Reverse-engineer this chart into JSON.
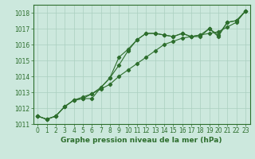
{
  "x": [
    0,
    1,
    2,
    3,
    4,
    5,
    6,
    7,
    8,
    9,
    10,
    11,
    12,
    13,
    14,
    15,
    16,
    17,
    18,
    19,
    20,
    21,
    22,
    23
  ],
  "line1": [
    1011.5,
    1011.3,
    1011.5,
    1012.1,
    1012.5,
    1012.6,
    1012.6,
    1013.3,
    1013.9,
    1015.2,
    1015.7,
    1016.3,
    1016.7,
    1016.7,
    1016.6,
    1016.5,
    1016.7,
    1016.5,
    1016.5,
    1017.0,
    1016.5,
    1017.4,
    1017.5,
    1018.1
  ],
  "line2": [
    1011.5,
    1011.3,
    1011.5,
    1012.1,
    1012.5,
    1012.6,
    1012.9,
    1013.3,
    1013.9,
    1014.7,
    1015.6,
    1016.3,
    1016.7,
    1016.7,
    1016.6,
    1016.5,
    1016.7,
    1016.5,
    1016.6,
    1017.0,
    1016.6,
    1017.4,
    1017.5,
    1018.1
  ],
  "line3": [
    1011.5,
    1011.3,
    1011.5,
    1012.1,
    1012.5,
    1012.7,
    1012.9,
    1013.2,
    1013.5,
    1014.0,
    1014.4,
    1014.8,
    1015.2,
    1015.6,
    1016.0,
    1016.2,
    1016.4,
    1016.5,
    1016.6,
    1016.7,
    1016.8,
    1017.1,
    1017.4,
    1018.1
  ],
  "line_color": "#2d6e2d",
  "bg_color": "#cce8dd",
  "grid_color": "#aacfbf",
  "xlabel": "Graphe pression niveau de la mer (hPa)",
  "ylim": [
    1011,
    1018.5
  ],
  "xlim": [
    -0.5,
    23.5
  ],
  "yticks": [
    1011,
    1012,
    1013,
    1014,
    1015,
    1016,
    1017,
    1018
  ],
  "xticks": [
    0,
    1,
    2,
    3,
    4,
    5,
    6,
    7,
    8,
    9,
    10,
    11,
    12,
    13,
    14,
    15,
    16,
    17,
    18,
    19,
    20,
    21,
    22,
    23
  ],
  "marker": "D",
  "markersize": 2.2,
  "linewidth": 0.8,
  "xlabel_fontsize": 6.5,
  "tick_fontsize": 5.5
}
